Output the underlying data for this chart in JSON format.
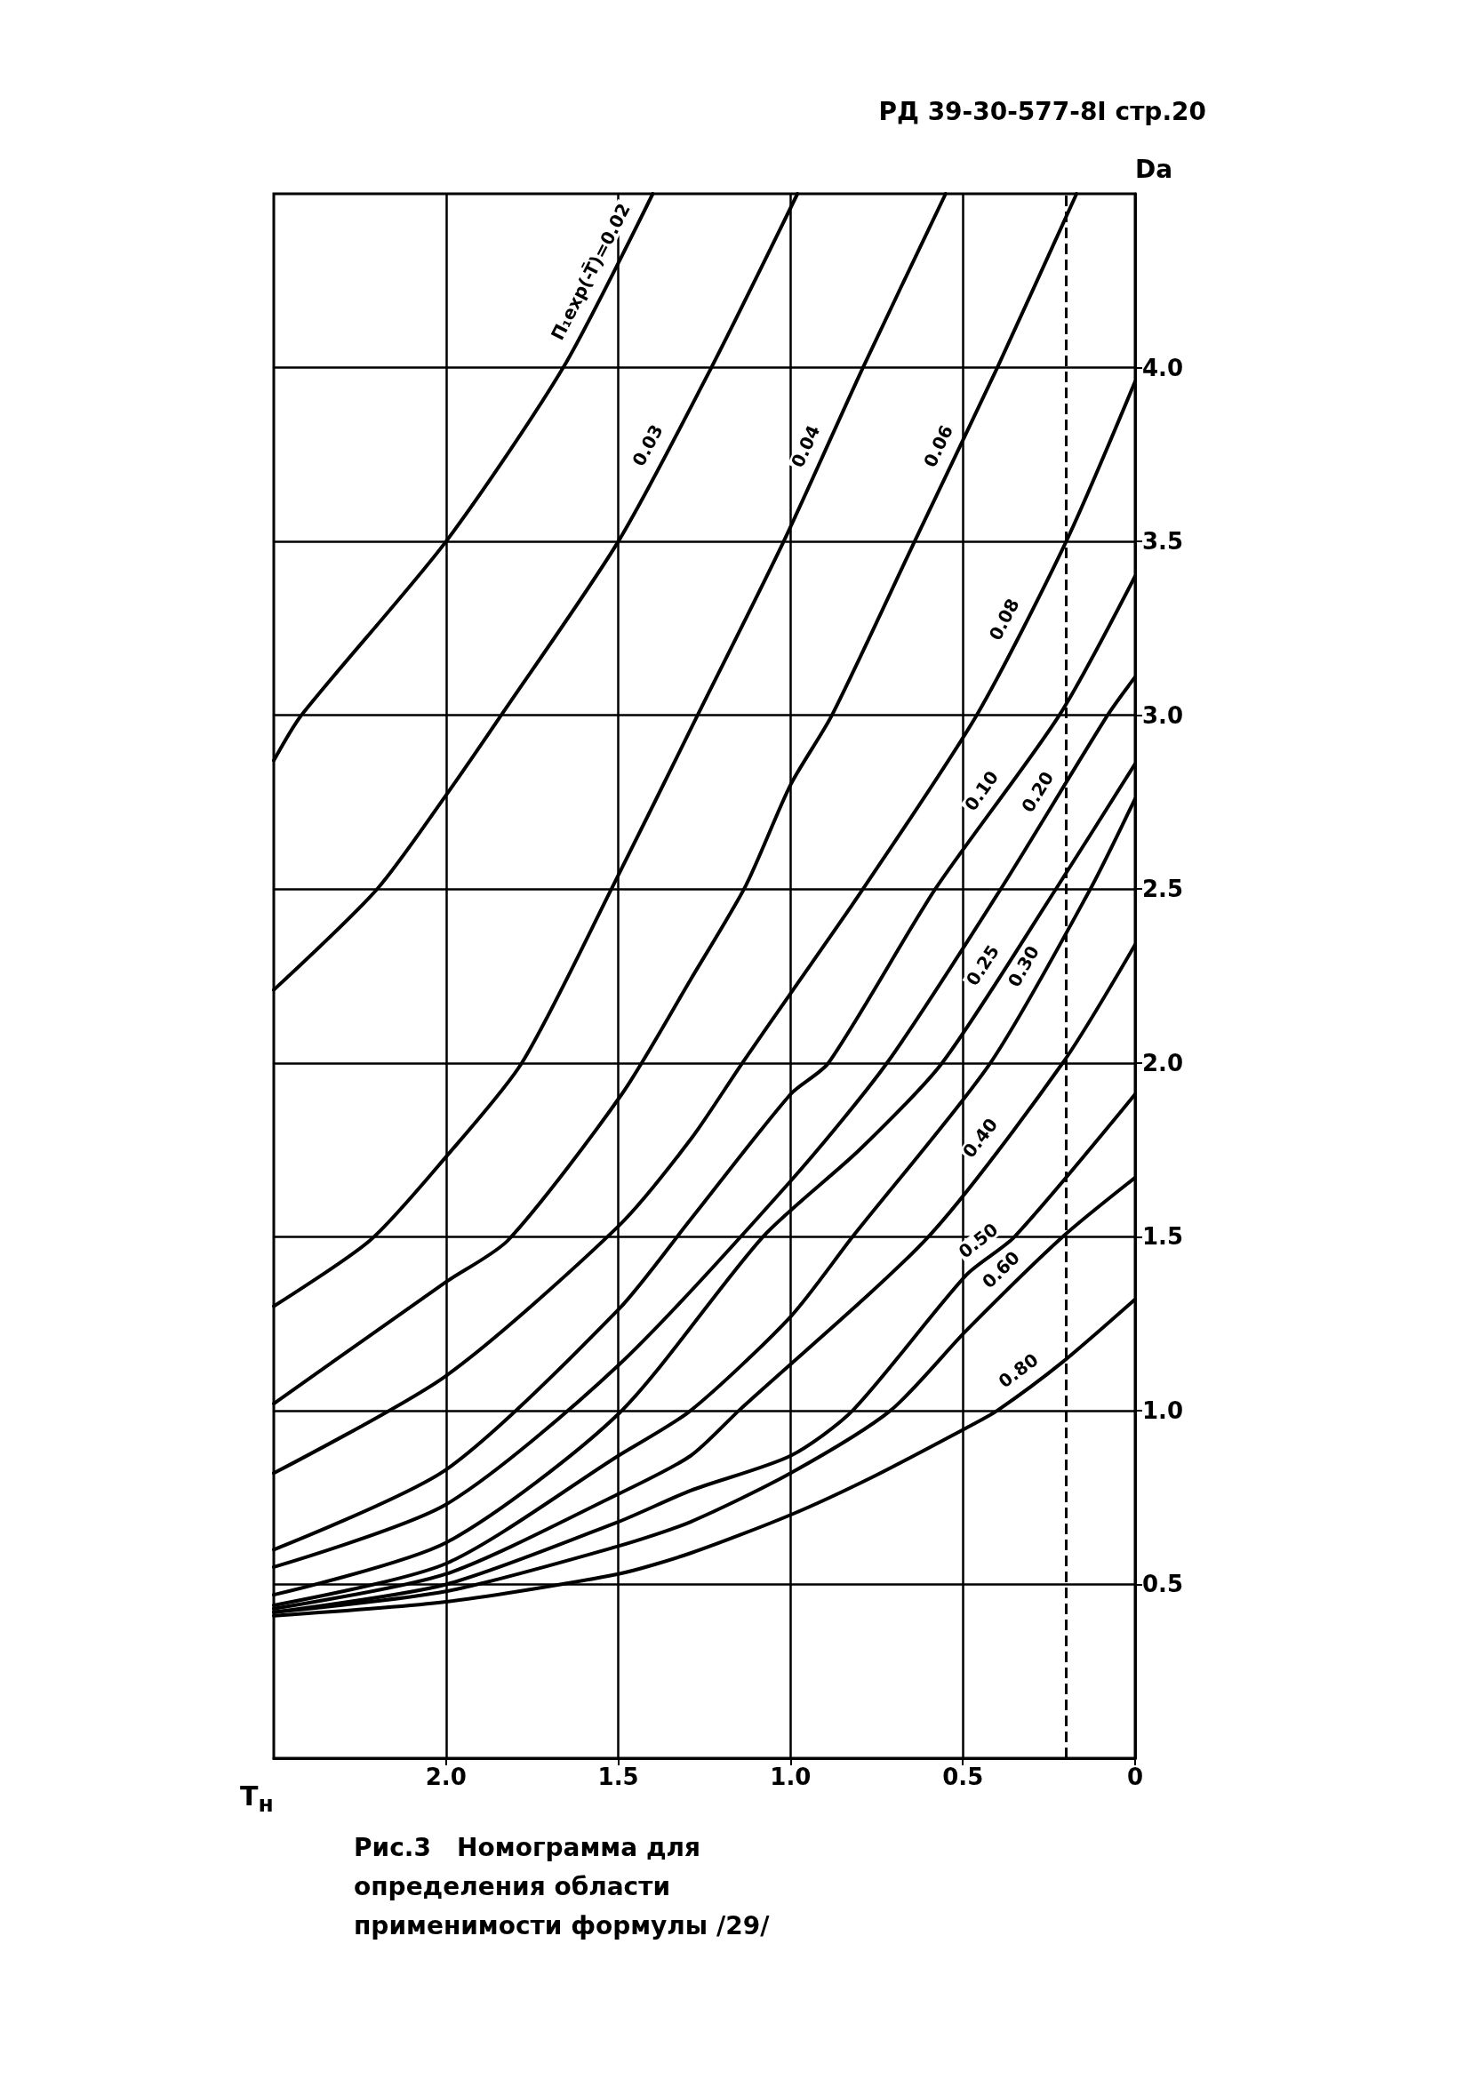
{
  "chart_data": {
    "type": "line",
    "xlabel": "T$_{н}$",
    "ylabel": "Da",
    "xlim": [
      2.5,
      0
    ],
    "xticks": [
      {
        "value": 2,
        "label": "2.0"
      },
      1.5,
      {
        "value": 1,
        "label": "1.0"
      },
      0.5,
      0
    ],
    "ylim": [
      0,
      4.5
    ],
    "yticks": [
      0.5,
      {
        "value": 1,
        "label": "1.0"
      },
      1.5,
      {
        "value": 2,
        "label": "2.0"
      },
      2.5,
      {
        "value": 3,
        "label": "3.0"
      },
      3.5,
      {
        "value": 4,
        "label": "4.0"
      }
    ],
    "grid": true,
    "marker": "none",
    "line_style": "solid",
    "ref_lines": [
      {
        "axis": "x",
        "value": 0.2,
        "line_style": "dashed",
        "color": "#000000"
      }
    ],
    "annotations": [
      "РД 39-30-577-8I стр.20",
      "Рис.3   Номограмма для определения области применимости формулы /29/"
    ],
    "series": [
      {
        "name": "П₁exp(-T̄)=0.02",
        "color": "#000000",
        "x": [
          2.5,
          2.42,
          2.0,
          1.66,
          1.4
        ],
        "values": [
          2.87,
          3.0,
          3.5,
          4.0,
          4.5
        ]
      },
      {
        "name": "0.03",
        "color": "#000000",
        "x": [
          2.5,
          2.2,
          2.0,
          1.84,
          1.5,
          1.23,
          0.98
        ],
        "values": [
          2.21,
          2.5,
          2.77,
          3.0,
          3.5,
          4.0,
          4.5
        ]
      },
      {
        "name": "0.04",
        "color": "#000000",
        "x": [
          2.5,
          2.22,
          2.0,
          1.78,
          1.52,
          1.27,
          1.02,
          0.79,
          0.55
        ],
        "values": [
          1.3,
          1.49,
          1.73,
          2.0,
          2.5,
          3.0,
          3.5,
          4.0,
          4.5
        ]
      },
      {
        "name": "0.06",
        "color": "#000000",
        "x": [
          2.5,
          2.0,
          1.82,
          1.49,
          1.29,
          1.13,
          1.0,
          0.88,
          0.64,
          0.4,
          0.17
        ],
        "values": [
          1.02,
          1.37,
          1.49,
          1.91,
          2.24,
          2.51,
          2.8,
          3.0,
          3.5,
          4.0,
          4.5
        ]
      },
      {
        "name": "0.08",
        "color": "#000000",
        "x": [
          2.5,
          2.0,
          1.5,
          1.29,
          1.14,
          1.0,
          0.79,
          0.46,
          0.2,
          0
        ],
        "values": [
          0.82,
          1.1,
          1.53,
          1.78,
          2.0,
          2.2,
          2.5,
          3.0,
          3.5,
          3.96
        ]
      },
      {
        "name": "0.10",
        "color": "#000000",
        "x": [
          2.5,
          2.0,
          1.5,
          1.29,
          1.0,
          0.89,
          0.58,
          0.22,
          0
        ],
        "values": [
          0.6,
          0.83,
          1.29,
          1.55,
          1.91,
          2.0,
          2.5,
          3.0,
          3.4
        ]
      },
      {
        "name": "0.20",
        "color": "#000000",
        "x": [
          2.5,
          2.0,
          1.5,
          1.0,
          0.72,
          0.39,
          0.08,
          0
        ],
        "values": [
          0.55,
          0.73,
          1.13,
          1.66,
          2.0,
          2.5,
          3.0,
          3.11
        ]
      },
      {
        "name": "0.25",
        "color": "#000000",
        "x": [
          2.5,
          2.0,
          1.5,
          1.08,
          0.8,
          0.56,
          0.23,
          0
        ],
        "values": [
          0.47,
          0.62,
          0.99,
          1.5,
          1.75,
          2.0,
          2.5,
          2.86
        ]
      },
      {
        "name": "0.30",
        "color": "#000000",
        "x": [
          2.5,
          2.0,
          1.5,
          1.29,
          1.0,
          0.82,
          0.42,
          0.13,
          0
        ],
        "values": [
          0.44,
          0.56,
          0.87,
          1.0,
          1.27,
          1.5,
          2.0,
          2.5,
          2.76
        ]
      },
      {
        "name": "0.40",
        "color": "#000000",
        "x": [
          2.5,
          2.0,
          1.5,
          1.29,
          1.15,
          0.6,
          0.21,
          0
        ],
        "values": [
          0.43,
          0.53,
          0.76,
          0.87,
          1.0,
          1.5,
          2.0,
          2.34
        ]
      },
      {
        "name": "0.50",
        "color": "#000000",
        "x": [
          2.5,
          2.0,
          1.5,
          1.29,
          1.0,
          0.82,
          0.49,
          0.35,
          0
        ],
        "values": [
          0.42,
          0.5,
          0.68,
          0.77,
          0.87,
          1.0,
          1.39,
          1.5,
          1.91
        ]
      },
      {
        "name": "0.60",
        "color": "#000000",
        "x": [
          2.5,
          2.0,
          1.5,
          1.29,
          1.0,
          0.71,
          0.49,
          0.21,
          0
        ],
        "values": [
          0.42,
          0.48,
          0.61,
          0.68,
          0.82,
          1.0,
          1.23,
          1.5,
          1.67
        ]
      },
      {
        "name": "0.80",
        "color": "#000000",
        "x": [
          2.5,
          2.0,
          1.5,
          1.29,
          1.0,
          0.76,
          0.49,
          0.4,
          0.21,
          0
        ],
        "values": [
          0.41,
          0.45,
          0.53,
          0.59,
          0.7,
          0.81,
          0.95,
          1.0,
          1.14,
          1.32
        ]
      }
    ]
  }
}
